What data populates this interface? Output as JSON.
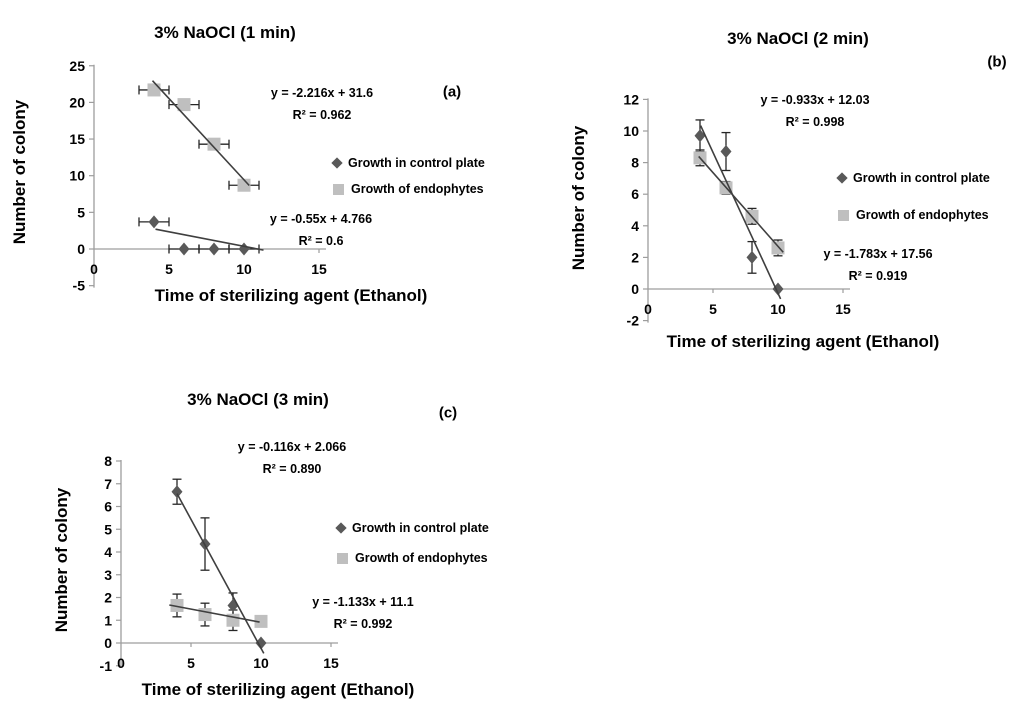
{
  "colors": {
    "control_marker": "#595959",
    "endophyte_marker": "#bfbfbf",
    "trendline": "#3f3f3f",
    "error_bar": "#262626",
    "axis": "#9d9d9d",
    "text": "#000000",
    "background": "#ffffff"
  },
  "chart_data": [
    {
      "id": "a",
      "type": "scatter",
      "title": "3% NaOCl (1 min)",
      "panel_label": "(a)",
      "xlabel": "Time of sterilizing agent (Ethanol)",
      "ylabel": "Number of colony",
      "x_ticks": [
        0,
        5,
        10,
        15
      ],
      "y_ticks": [
        -5,
        0,
        5,
        10,
        15,
        20,
        25
      ],
      "y_min": -5,
      "y_max": 25,
      "x_axis_end": 15,
      "grid": false,
      "legend_position": "right",
      "legend": [
        "Growth in control plate",
        "Growth of endophytes"
      ],
      "equations": [
        {
          "text": "y = -2.216x + 31.6",
          "r2": "R² = 0.962",
          "series": "Growth of endophytes"
        },
        {
          "text": "y = -0.55x + 4.766",
          "r2": "R² = 0.6",
          "series": "Growth in control plate"
        }
      ],
      "series": [
        {
          "name": "Growth in control plate",
          "marker": "diamond",
          "error_dir": "x",
          "trend": {
            "slope": -0.55,
            "intercept": 4.766
          },
          "points": [
            {
              "x": 4,
              "y": 3.7,
              "err": 1
            },
            {
              "x": 6,
              "y": 0,
              "err": 1
            },
            {
              "x": 8,
              "y": 0,
              "err": 1
            },
            {
              "x": 10,
              "y": 0,
              "err": 1
            }
          ]
        },
        {
          "name": "Growth of endophytes",
          "marker": "square",
          "error_dir": "x",
          "trend": {
            "slope": -2.216,
            "intercept": 31.6
          },
          "points": [
            {
              "x": 4,
              "y": 21.7,
              "err": 1
            },
            {
              "x": 6,
              "y": 19.7,
              "err": 1
            },
            {
              "x": 8,
              "y": 14.3,
              "err": 1
            },
            {
              "x": 10,
              "y": 8.7,
              "err": 1
            }
          ]
        }
      ]
    },
    {
      "id": "b",
      "type": "scatter",
      "title": "3% NaOCl (2 min)",
      "panel_label": "(b)",
      "xlabel": "Time of sterilizing agent (Ethanol)",
      "ylabel": "Number of colony",
      "x_ticks": [
        0,
        5,
        10,
        15
      ],
      "y_ticks": [
        -2,
        0,
        2,
        4,
        6,
        8,
        10,
        12
      ],
      "y_min": -2,
      "y_max": 12,
      "x_axis_end": 15,
      "grid": false,
      "legend_position": "right",
      "legend": [
        "Growth in control plate",
        "Growth of endophytes"
      ],
      "equations": [
        {
          "text": "y = -0.933x + 12.03",
          "r2": "R² = 0.998",
          "series": "Growth of endophytes"
        },
        {
          "text": "y = -1.783x + 17.56",
          "r2": "R² = 0.919",
          "series": "Growth in control plate"
        }
      ],
      "series": [
        {
          "name": "Growth in control plate",
          "marker": "diamond",
          "error_dir": "y",
          "trend": {
            "slope": -1.783,
            "intercept": 17.56
          },
          "points": [
            {
              "x": 4,
              "y": 9.7,
              "err": 1
            },
            {
              "x": 6,
              "y": 8.7,
              "err": 1.2
            },
            {
              "x": 8,
              "y": 2,
              "err": 1
            },
            {
              "x": 10,
              "y": 0,
              "err": null
            }
          ]
        },
        {
          "name": "Growth of endophytes",
          "marker": "square",
          "error_dir": "y",
          "trend": {
            "slope": -0.933,
            "intercept": 12.03
          },
          "points": [
            {
              "x": 4,
              "y": 8.3,
              "err": 0.5
            },
            {
              "x": 6,
              "y": 6.4,
              "err": 0.4
            },
            {
              "x": 8,
              "y": 4.6,
              "err": 0.5
            },
            {
              "x": 10,
              "y": 2.6,
              "err": 0.5
            }
          ]
        }
      ]
    },
    {
      "id": "c",
      "type": "scatter",
      "title": "3% NaOCl (3 min)",
      "panel_label": "(c)",
      "xlabel": "Time of sterilizing agent (Ethanol)",
      "ylabel": "Number of colony",
      "x_ticks": [
        0,
        5,
        10,
        15
      ],
      "y_ticks": [
        -1,
        0,
        1,
        2,
        3,
        4,
        5,
        6,
        7,
        8
      ],
      "y_min": -1,
      "y_max": 8,
      "x_axis_end": 15,
      "grid": false,
      "legend_position": "right",
      "legend": [
        "Growth in control plate",
        "Growth of endophytes"
      ],
      "equations": [
        {
          "text": "y = -0.116x + 2.066",
          "r2": "R² = 0.890",
          "series": "Growth of endophytes"
        },
        {
          "text": "y = -1.133x + 11.1",
          "r2": "R² = 0.992",
          "series": "Growth in control plate"
        }
      ],
      "series": [
        {
          "name": "Growth in control plate",
          "marker": "diamond",
          "error_dir": "y",
          "trend": {
            "slope": -1.133,
            "intercept": 11.1
          },
          "points": [
            {
              "x": 4,
              "y": 6.65,
              "err": 0.55
            },
            {
              "x": 6,
              "y": 4.35,
              "err": 1.15
            },
            {
              "x": 8,
              "y": 1.65,
              "err": 0.55
            },
            {
              "x": 10,
              "y": 0,
              "err": null
            }
          ]
        },
        {
          "name": "Growth of endophytes",
          "marker": "square",
          "error_dir": "y",
          "trend": {
            "slope": -0.116,
            "intercept": 2.066
          },
          "points": [
            {
              "x": 4,
              "y": 1.65,
              "err": 0.5
            },
            {
              "x": 6,
              "y": 1.25,
              "err": 0.5
            },
            {
              "x": 8,
              "y": 1.0,
              "err": 0.45
            },
            {
              "x": 10,
              "y": 0.95,
              "err": null
            }
          ]
        }
      ]
    }
  ]
}
